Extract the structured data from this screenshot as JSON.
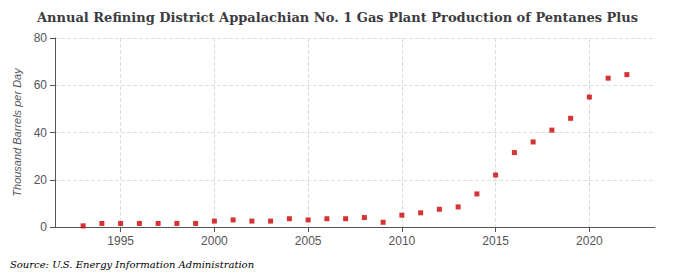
{
  "chart_data": {
    "type": "scatter",
    "title": "Annual Refining District Appalachian No. 1 Gas Plant Production of Pentanes Plus",
    "ylabel": "Thousand Barrels per Day",
    "source": "Source: U.S. Energy Information Administration",
    "x": [
      1993,
      1994,
      1995,
      1996,
      1997,
      1998,
      1999,
      2000,
      2001,
      2002,
      2003,
      2004,
      2005,
      2006,
      2007,
      2008,
      2009,
      2010,
      2011,
      2012,
      2013,
      2014,
      2015,
      2016,
      2017,
      2018,
      2019,
      2020,
      2021,
      2022
    ],
    "values": [
      0.5,
      1.5,
      1.5,
      1.5,
      1.5,
      1.5,
      1.5,
      2.5,
      3.0,
      2.5,
      2.5,
      3.5,
      3.0,
      3.5,
      3.5,
      4.0,
      2.0,
      5.0,
      6.0,
      7.5,
      8.5,
      14.0,
      22.0,
      31.5,
      36.0,
      41.0,
      46.0,
      55.0,
      63.0,
      64.5
    ],
    "color": "#cc0000",
    "marker": "square",
    "xlim": [
      1991.5,
      2023.5
    ],
    "ylim": [
      0,
      80
    ],
    "xticks": [
      1995,
      2000,
      2005,
      2010,
      2015,
      2020
    ],
    "yticks": [
      0,
      20,
      40,
      60,
      80
    ],
    "grid": true
  }
}
